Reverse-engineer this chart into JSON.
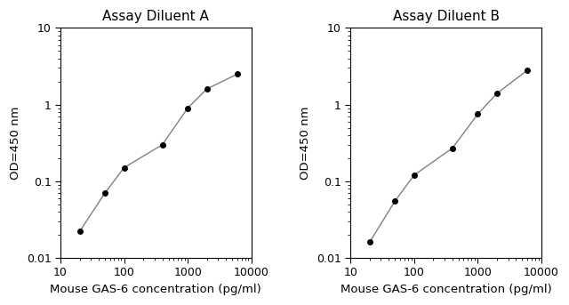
{
  "title_A": "Assay Diluent A",
  "title_B": "Assay Diluent B",
  "xlabel": "Mouse GAS-6 concentration (pg/ml)",
  "ylabel": "OD=450 nm",
  "x_A": [
    20,
    50,
    100,
    400,
    1000,
    2000,
    6000
  ],
  "y_A": [
    0.022,
    0.07,
    0.15,
    0.3,
    0.9,
    1.6,
    2.5
  ],
  "x_B": [
    20,
    50,
    100,
    400,
    1000,
    2000,
    6000
  ],
  "y_B": [
    0.016,
    0.055,
    0.12,
    0.27,
    0.75,
    1.4,
    2.8
  ],
  "xlim": [
    10,
    10000
  ],
  "ylim": [
    0.01,
    10
  ],
  "line_color": "#808080",
  "marker_color": "#000000",
  "title_fontsize": 11,
  "label_fontsize": 9.5,
  "tick_fontsize": 9,
  "bg_color": "#ffffff"
}
